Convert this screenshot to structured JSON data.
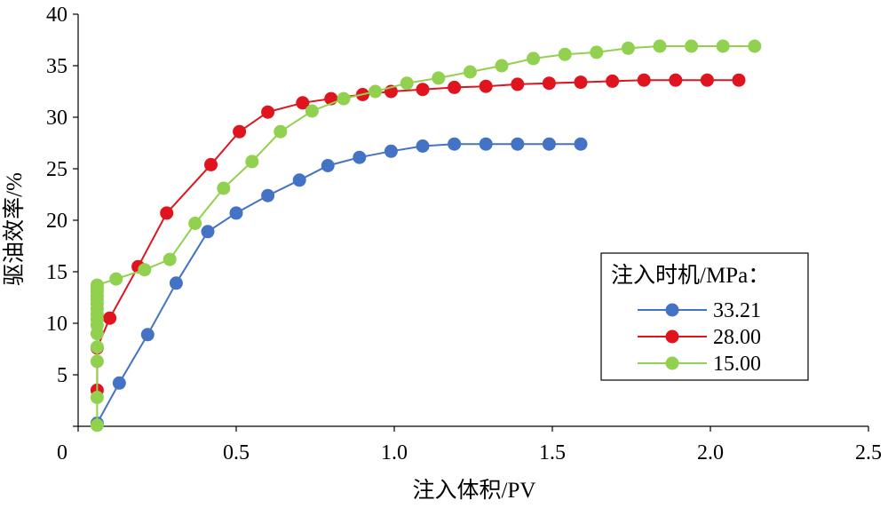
{
  "chart_data": {
    "type": "line",
    "xlabel": "注入体积/PV",
    "ylabel": "驱油效率/%",
    "xlim": [
      0,
      2.5
    ],
    "ylim": [
      0,
      40
    ],
    "xticks": [
      "0",
      "0.5",
      "1.0",
      "1.5",
      "2.0",
      "2.5"
    ],
    "yticks": [
      "5",
      "10",
      "15",
      "20",
      "25",
      "30",
      "35",
      "40"
    ],
    "x_tick_values": [
      0,
      0.5,
      1.0,
      1.5,
      2.0,
      2.5
    ],
    "y_tick_values": [
      5,
      10,
      15,
      20,
      25,
      30,
      35,
      40
    ],
    "grid": false,
    "legend": {
      "title": "注入时机/MPa：",
      "position": "bottom-right"
    },
    "series": [
      {
        "name": "33.21",
        "color": "#4472C4",
        "points": [
          [
            0.06,
            0.3
          ],
          [
            0.13,
            4.2
          ],
          [
            0.22,
            8.9
          ],
          [
            0.31,
            13.9
          ],
          [
            0.41,
            18.9
          ],
          [
            0.5,
            20.7
          ],
          [
            0.6,
            22.4
          ],
          [
            0.7,
            23.9
          ],
          [
            0.79,
            25.3
          ],
          [
            0.89,
            26.1
          ],
          [
            0.99,
            26.7
          ],
          [
            1.09,
            27.2
          ],
          [
            1.19,
            27.4
          ],
          [
            1.29,
            27.4
          ],
          [
            1.39,
            27.4
          ],
          [
            1.49,
            27.4
          ],
          [
            1.59,
            27.4
          ]
        ]
      },
      {
        "name": "28.00",
        "color": "#E0141E",
        "points": [
          [
            0.06,
            3.5
          ],
          [
            0.06,
            7.6
          ],
          [
            0.1,
            10.5
          ],
          [
            0.19,
            15.5
          ],
          [
            0.28,
            20.7
          ],
          [
            0.42,
            25.4
          ],
          [
            0.51,
            28.6
          ],
          [
            0.6,
            30.5
          ],
          [
            0.71,
            31.4
          ],
          [
            0.8,
            31.8
          ],
          [
            0.9,
            32.2
          ],
          [
            0.99,
            32.5
          ],
          [
            1.09,
            32.7
          ],
          [
            1.19,
            32.9
          ],
          [
            1.29,
            33.0
          ],
          [
            1.39,
            33.2
          ],
          [
            1.49,
            33.3
          ],
          [
            1.59,
            33.4
          ],
          [
            1.69,
            33.5
          ],
          [
            1.79,
            33.6
          ],
          [
            1.89,
            33.6
          ],
          [
            1.99,
            33.6
          ],
          [
            2.09,
            33.6
          ]
        ]
      },
      {
        "name": "15.00",
        "color": "#92D050",
        "points": [
          [
            0.06,
            0.1
          ],
          [
            0.06,
            2.8
          ],
          [
            0.06,
            6.3
          ],
          [
            0.06,
            7.7
          ],
          [
            0.06,
            9.0
          ],
          [
            0.06,
            9.8
          ],
          [
            0.06,
            10.4
          ],
          [
            0.06,
            10.9
          ],
          [
            0.06,
            11.4
          ],
          [
            0.06,
            11.9
          ],
          [
            0.06,
            12.3
          ],
          [
            0.06,
            12.7
          ],
          [
            0.06,
            13.1
          ],
          [
            0.06,
            13.4
          ],
          [
            0.06,
            13.7
          ],
          [
            0.12,
            14.3
          ],
          [
            0.21,
            15.2
          ],
          [
            0.29,
            16.2
          ],
          [
            0.37,
            19.7
          ],
          [
            0.46,
            23.1
          ],
          [
            0.55,
            25.7
          ],
          [
            0.64,
            28.6
          ],
          [
            0.74,
            30.6
          ],
          [
            0.84,
            31.8
          ],
          [
            0.94,
            32.5
          ],
          [
            1.04,
            33.3
          ],
          [
            1.14,
            33.8
          ],
          [
            1.24,
            34.4
          ],
          [
            1.34,
            35.0
          ],
          [
            1.44,
            35.7
          ],
          [
            1.54,
            36.1
          ],
          [
            1.64,
            36.3
          ],
          [
            1.74,
            36.7
          ],
          [
            1.84,
            36.9
          ],
          [
            1.94,
            36.9
          ],
          [
            2.04,
            36.9
          ],
          [
            2.14,
            36.9
          ]
        ]
      }
    ]
  }
}
